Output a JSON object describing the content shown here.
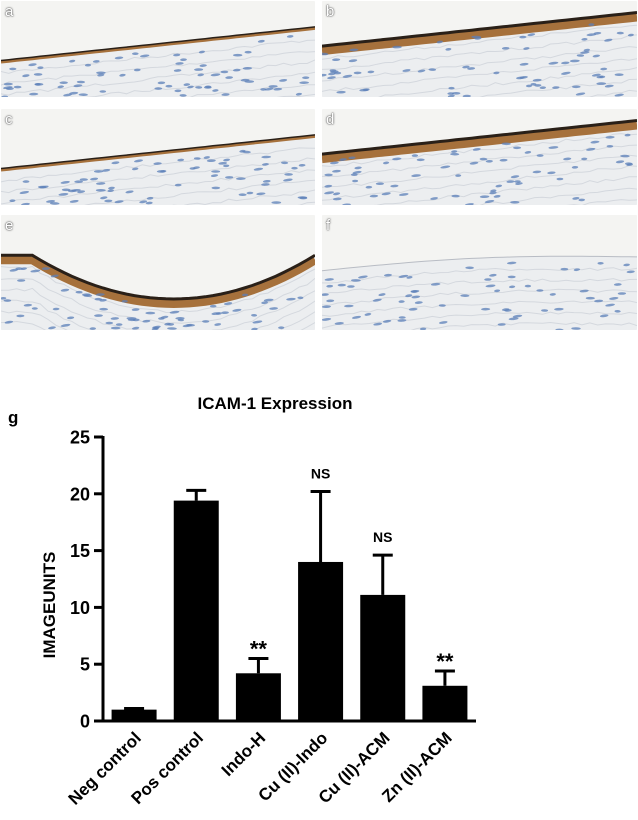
{
  "panels": [
    {
      "label": "a",
      "stain": "low"
    },
    {
      "label": "b",
      "stain": "high"
    },
    {
      "label": "c",
      "stain": "low"
    },
    {
      "label": "d",
      "stain": "high"
    },
    {
      "label": "e",
      "stain": "high"
    },
    {
      "label": "f",
      "stain": "none"
    }
  ],
  "figure_label": "g",
  "colors": {
    "tissue": "#eceef0",
    "background": "#f4f4f2",
    "nuclei": "#5b7fb8",
    "brown_stain": "#9a5a1c",
    "dark_edge": "#2a2018",
    "bar": "#000000"
  },
  "chart_data": {
    "type": "bar",
    "title": "ICAM-1 Expression",
    "ylabel": "IMAGEUNITS",
    "xlabel": "",
    "categories": [
      "Neg control",
      "Pos control",
      "Indo-H",
      "Cu (II)-Indo",
      "Cu (II)-ACM",
      "Zn (II)-ACM"
    ],
    "values": [
      1.0,
      19.4,
      4.2,
      14.0,
      11.1,
      3.1
    ],
    "errors": [
      0.1,
      0.9,
      1.3,
      6.2,
      3.5,
      1.3
    ],
    "annotations": [
      "",
      "",
      "**",
      "NS",
      "NS",
      "**"
    ],
    "ylim": [
      0,
      25
    ],
    "yticks": [
      0,
      5,
      10,
      15,
      20,
      25
    ],
    "grid": false
  }
}
